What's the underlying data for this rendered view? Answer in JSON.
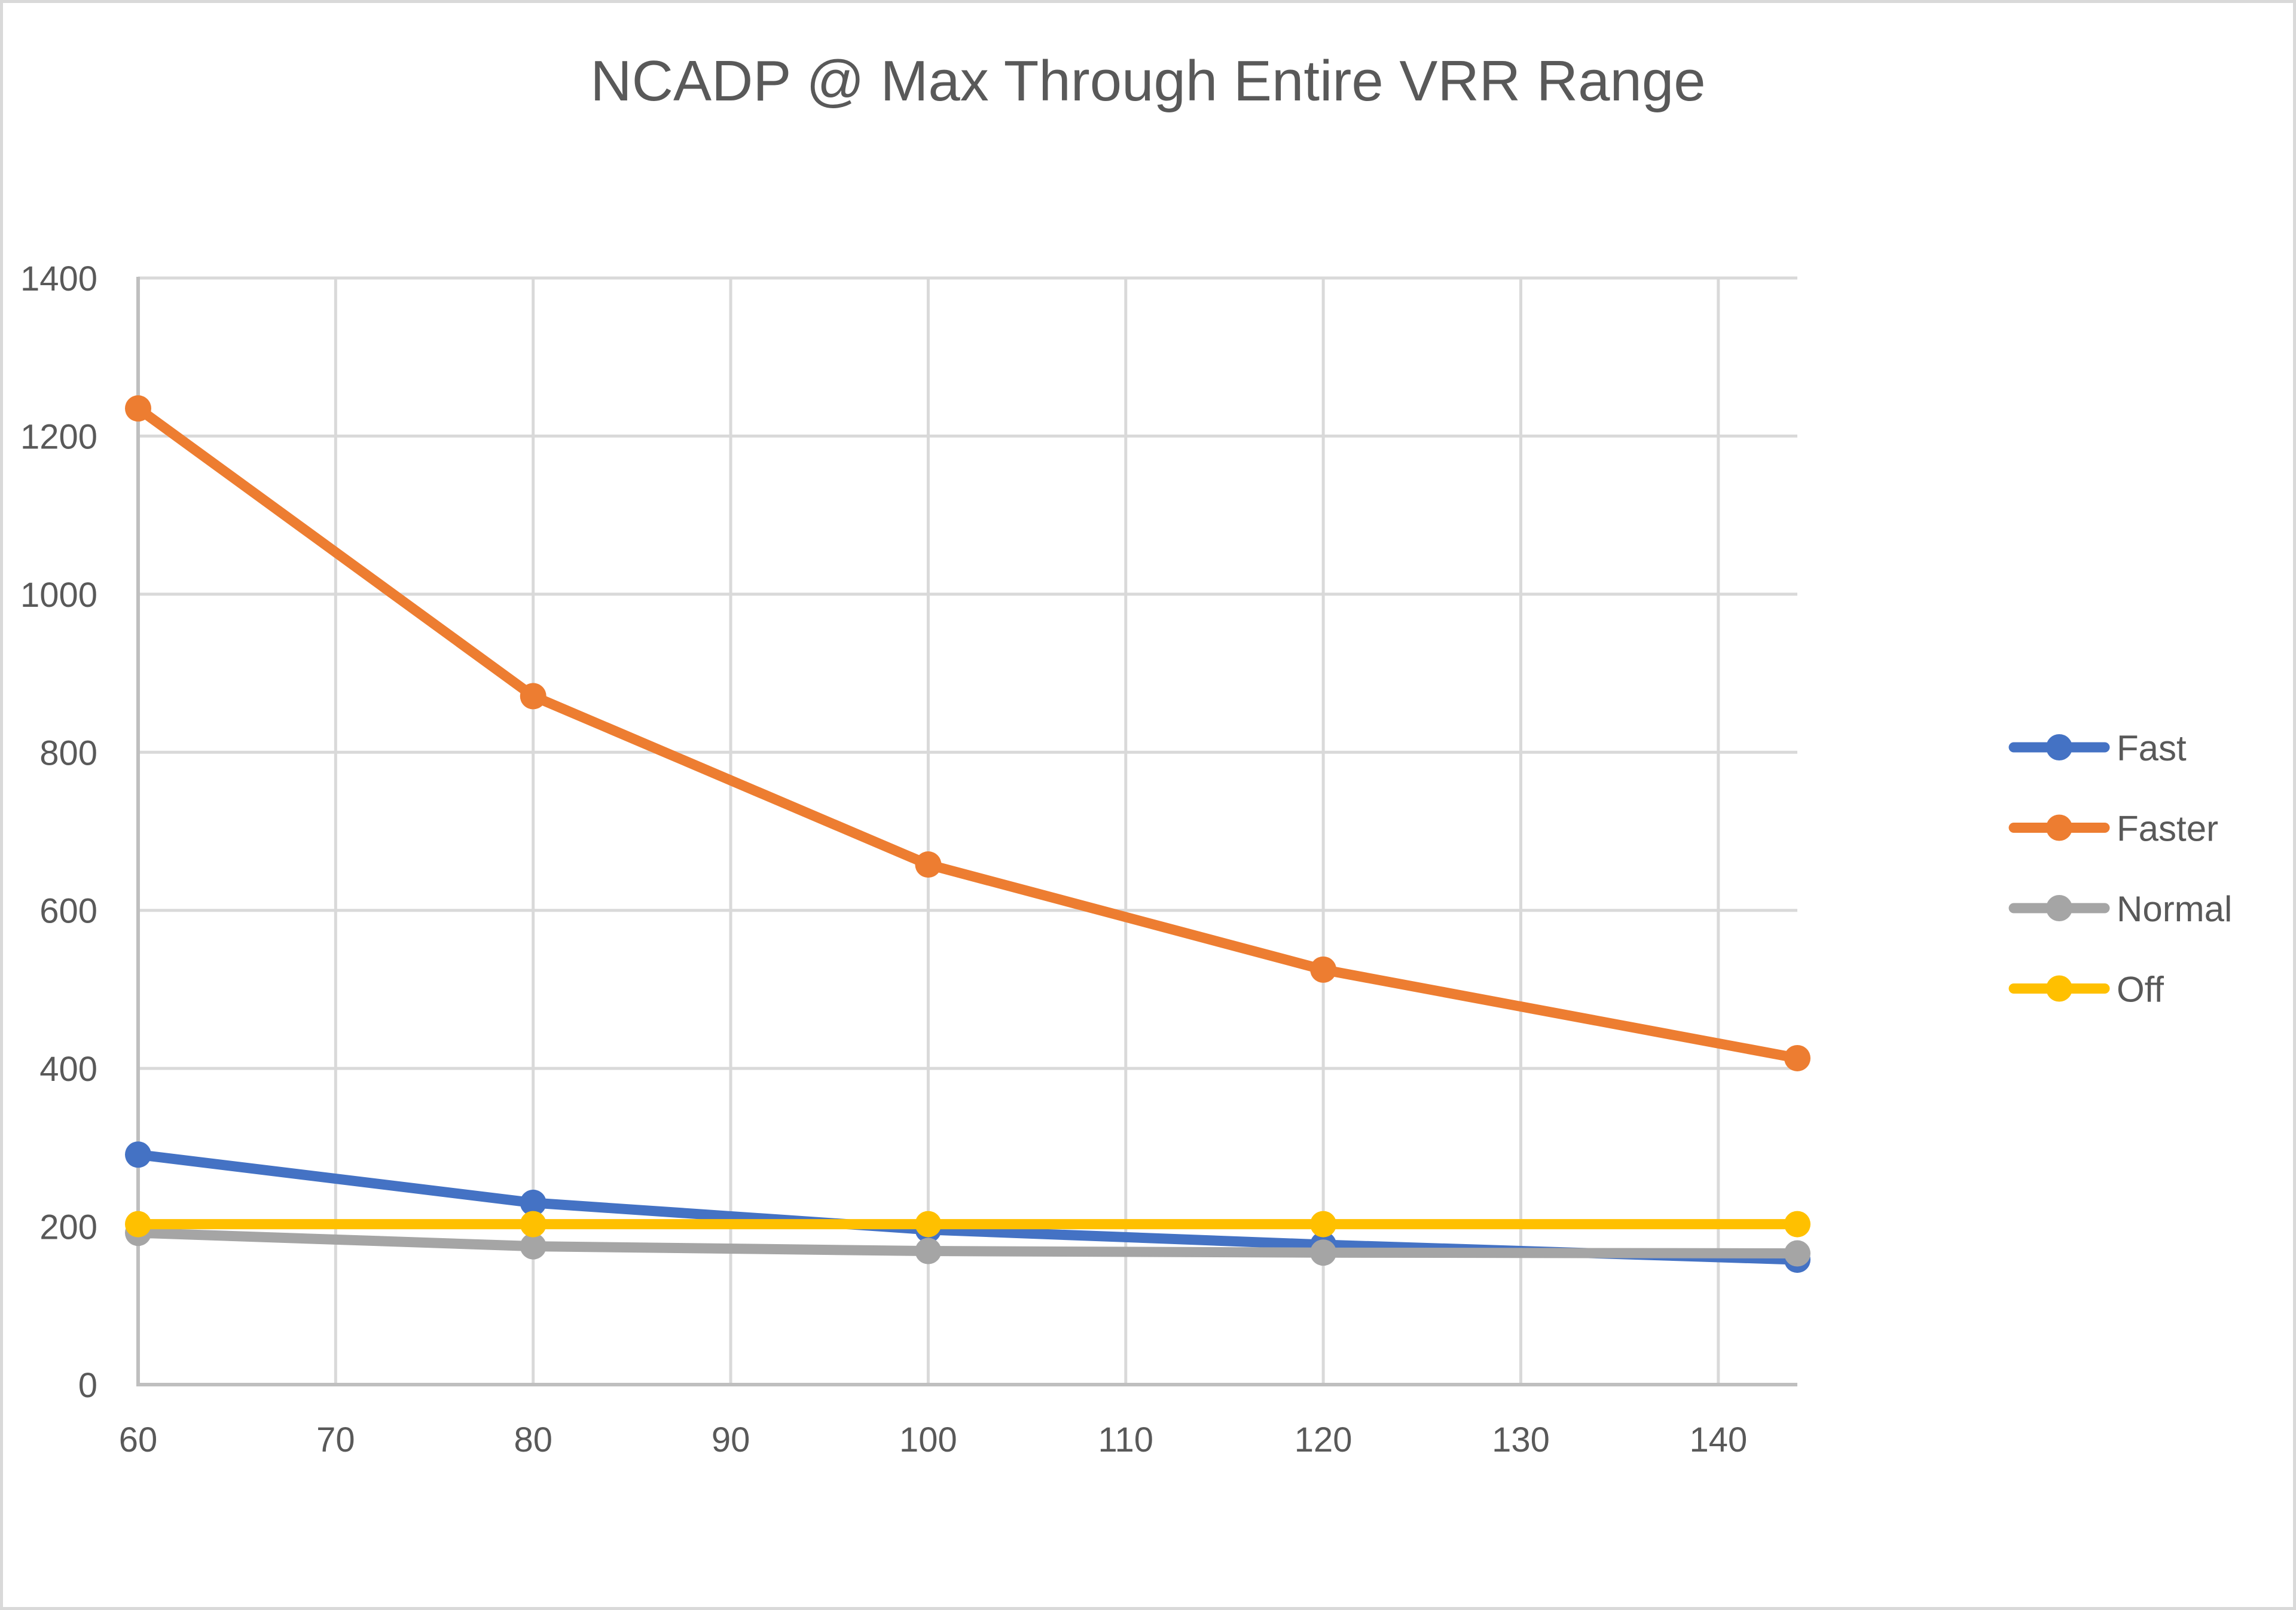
{
  "chart_data": {
    "type": "line",
    "title": "NCADP @ Max Through Entire VRR Range",
    "xlabel": "",
    "ylabel": "",
    "xlim": [
      60,
      144
    ],
    "ylim": [
      0,
      1400
    ],
    "x_ticks": [
      60,
      70,
      80,
      90,
      100,
      110,
      120,
      130,
      140
    ],
    "x_tick_labels": [
      "60",
      "70",
      "80",
      "90",
      "100",
      "110",
      "120",
      "130",
      "140"
    ],
    "y_ticks": [
      0,
      200,
      400,
      600,
      800,
      1000,
      1200,
      1400
    ],
    "y_tick_labels": [
      "0",
      "200",
      "400",
      "600",
      "800",
      "1000",
      "1200",
      "1400"
    ],
    "grid": true,
    "legend_position": "right",
    "x": [
      60,
      80,
      100,
      120,
      144
    ],
    "series": [
      {
        "name": "Fast",
        "color": "#4472c4",
        "values": [
          291,
          230,
          196,
          177,
          158
        ]
      },
      {
        "name": "Faster",
        "color": "#ed7d31",
        "values": [
          1235,
          871,
          658,
          525,
          413
        ]
      },
      {
        "name": "Normal",
        "color": "#a5a5a5",
        "values": [
          192,
          175,
          169,
          167,
          166
        ]
      },
      {
        "name": "Off",
        "color": "#ffc000",
        "values": [
          203,
          203,
          203,
          203,
          203
        ]
      }
    ]
  }
}
